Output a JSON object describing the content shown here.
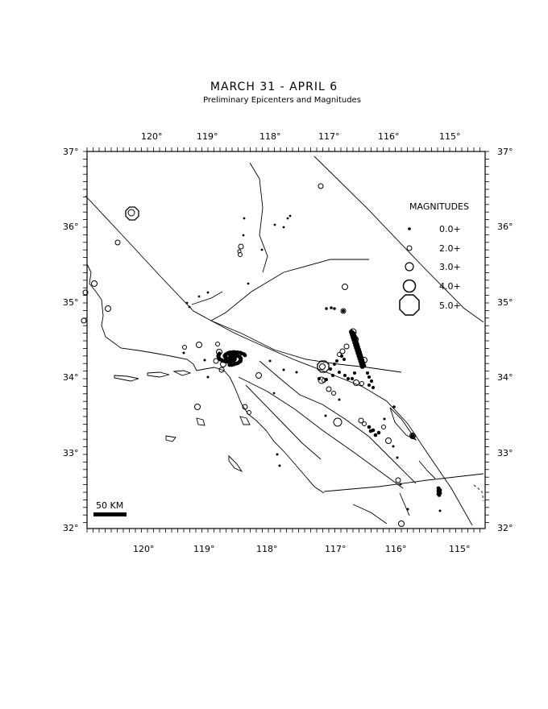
{
  "title": "MARCH 31 - APRIL 6",
  "subtitle": "Preliminary Epicenters and Magnitudes",
  "axes": {
    "top_lon_labels": [
      "120°",
      "119°",
      "118°",
      "117°",
      "116°",
      "115°"
    ],
    "bottom_lon_labels": [
      "120°",
      "119°",
      "118°",
      "117°",
      "116°",
      "115°"
    ],
    "lat_labels": [
      "37°",
      "36°",
      "35°",
      "34°",
      "33°",
      "32°"
    ]
  },
  "legend": {
    "heading": "MAGNITUDES",
    "items": [
      {
        "label": "0.0+",
        "shape": "dot"
      },
      {
        "label": "2.0+",
        "shape": "circle"
      },
      {
        "label": "3.0+",
        "shape": "circle"
      },
      {
        "label": "4.0+",
        "shape": "circle"
      },
      {
        "label": "5.0+",
        "shape": "octagon"
      }
    ]
  },
  "scale_bar": {
    "label": "50 KM"
  },
  "colors": {
    "ink": "#000000",
    "paper": "#ffffff"
  }
}
